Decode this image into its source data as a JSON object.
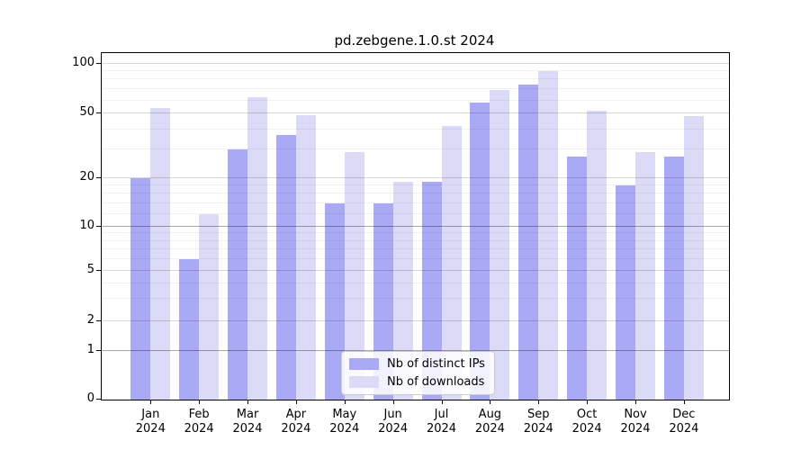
{
  "title": "pd.zebgene.1.0.st 2024",
  "chart_data": {
    "type": "bar",
    "title": "pd.zebgene.1.0.st 2024",
    "categories": [
      "Jan 2024",
      "Feb 2024",
      "Mar 2024",
      "Apr 2024",
      "May 2024",
      "Jun 2024",
      "Jul 2024",
      "Aug 2024",
      "Sep 2024",
      "Oct 2024",
      "Nov 2024",
      "Dec 2024"
    ],
    "series": [
      {
        "name": "Nb of distinct IPs",
        "color": "#a9a9f5",
        "values": [
          20,
          6,
          30,
          37,
          14,
          14,
          19,
          58,
          75,
          27,
          18,
          27
        ]
      },
      {
        "name": "Nb of downloads",
        "color": "#dbdbf8",
        "values": [
          54,
          12,
          63,
          49,
          29,
          19,
          42,
          69,
          90,
          52,
          29,
          48
        ]
      }
    ],
    "xlabel": "",
    "ylabel": "",
    "ylim": [
      0,
      100
    ],
    "y_scale": "log-like",
    "y_ticks": [
      0,
      1,
      2,
      5,
      10,
      20,
      50,
      100
    ],
    "y_minor_ticks": [
      3,
      4,
      6,
      7,
      8,
      9,
      12,
      14,
      16,
      18,
      30,
      40,
      60,
      70,
      80,
      90
    ],
    "grid": "on",
    "legend_position": "inside-bottom-center",
    "strong_gridlines_at": [
      1,
      10
    ]
  }
}
